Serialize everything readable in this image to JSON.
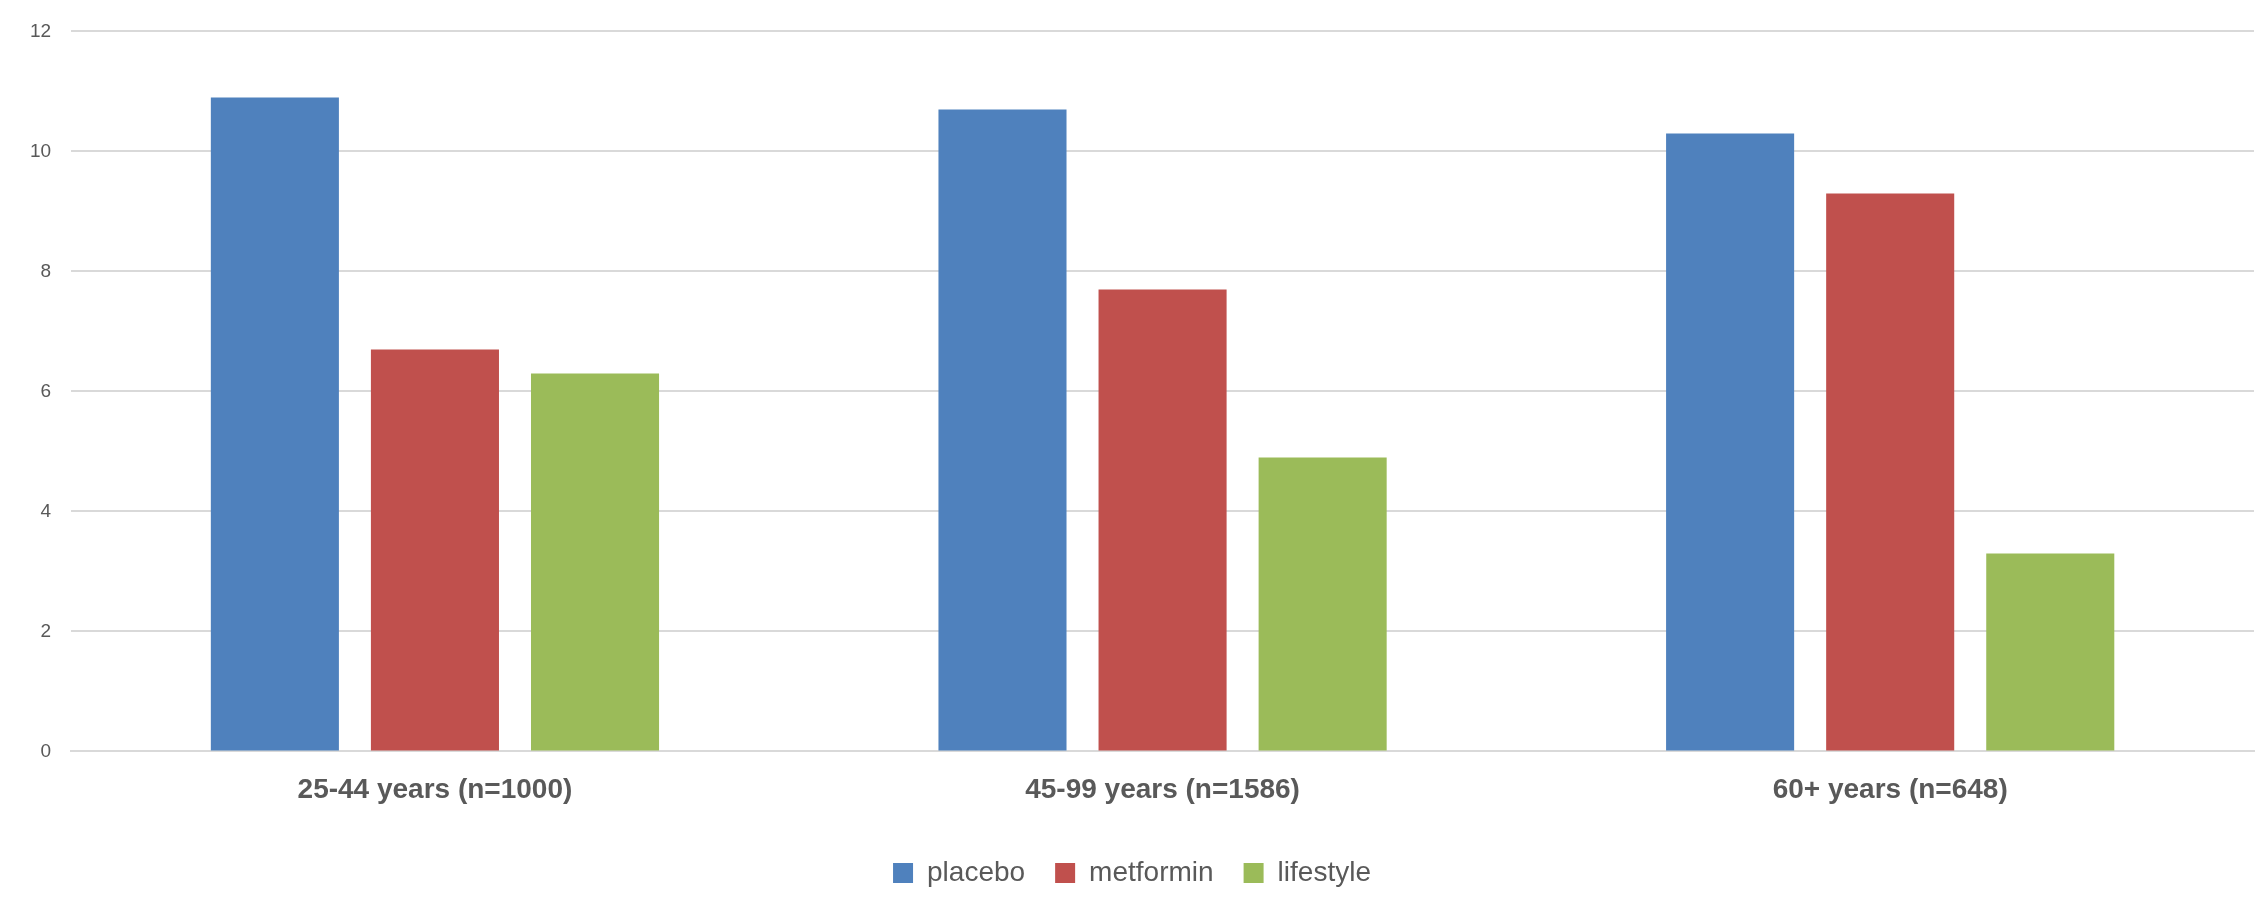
{
  "chart_data": {
    "type": "bar",
    "categories": [
      "25-44 years (n=1000)",
      "45-99 years (n=1586)",
      "60+ years (n=648)"
    ],
    "series": [
      {
        "name": "placebo",
        "color": "#4f81bd",
        "values": [
          10.9,
          10.7,
          10.3
        ]
      },
      {
        "name": "metformin",
        "color": "#c0504d",
        "values": [
          6.7,
          7.7,
          9.3
        ]
      },
      {
        "name": "lifestyle",
        "color": "#9bbb59",
        "values": [
          6.3,
          4.9,
          3.3
        ]
      }
    ],
    "ylim": [
      0,
      12
    ],
    "yticks": [
      0,
      2,
      4,
      6,
      8,
      10,
      12
    ],
    "grid": "y",
    "legend": "bottom"
  }
}
